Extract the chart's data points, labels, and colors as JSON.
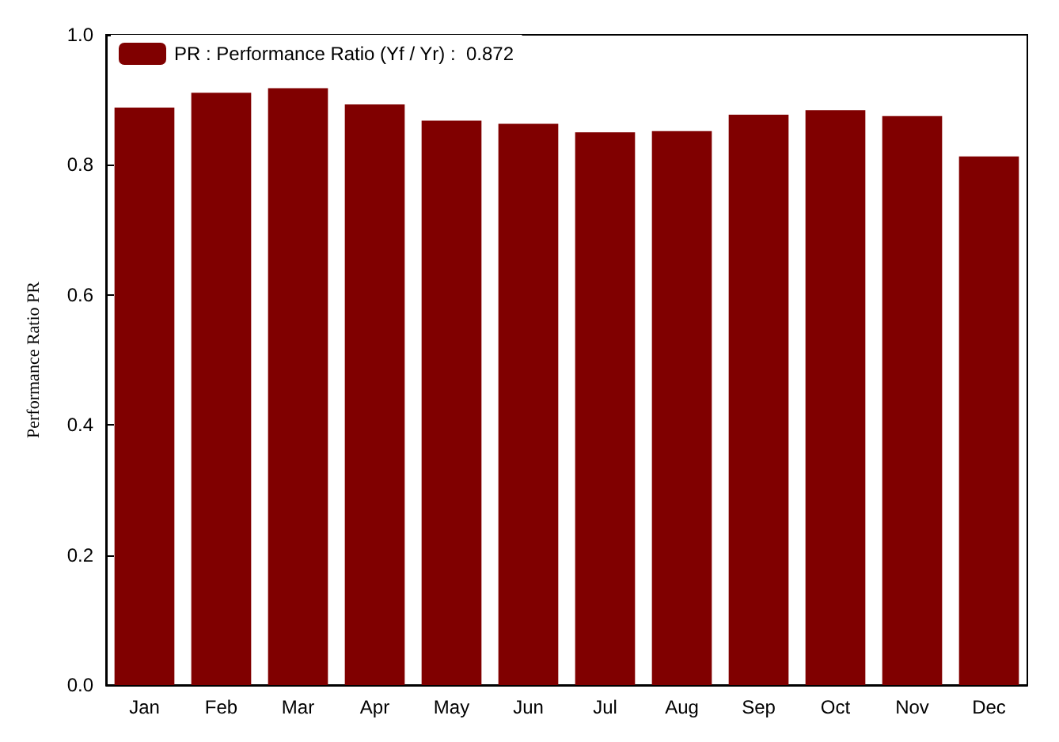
{
  "chart_data": {
    "type": "bar",
    "ylabel": "Performance Ratio PR",
    "categories": [
      "Jan",
      "Feb",
      "Mar",
      "Apr",
      "May",
      "Jun",
      "Jul",
      "Aug",
      "Sep",
      "Oct",
      "Nov",
      "Dec"
    ],
    "series": [
      {
        "name": "PR : Performance Ratio (Yf / Yr) :  0.872",
        "color": "#800000",
        "values": [
          0.888,
          0.911,
          0.918,
          0.893,
          0.868,
          0.863,
          0.85,
          0.852,
          0.877,
          0.884,
          0.875,
          0.813
        ]
      }
    ],
    "ylim": [
      0,
      1
    ],
    "yticks": [
      {
        "value": 0,
        "label": "0.0"
      },
      {
        "value": 0.2,
        "label": "0.2"
      },
      {
        "value": 0.4,
        "label": "0.4"
      },
      {
        "value": 0.6,
        "label": "0.6"
      },
      {
        "value": 0.8,
        "label": "0.8"
      },
      {
        "value": 1,
        "label": "1.0"
      }
    ],
    "grid": false,
    "legend": "top left"
  }
}
